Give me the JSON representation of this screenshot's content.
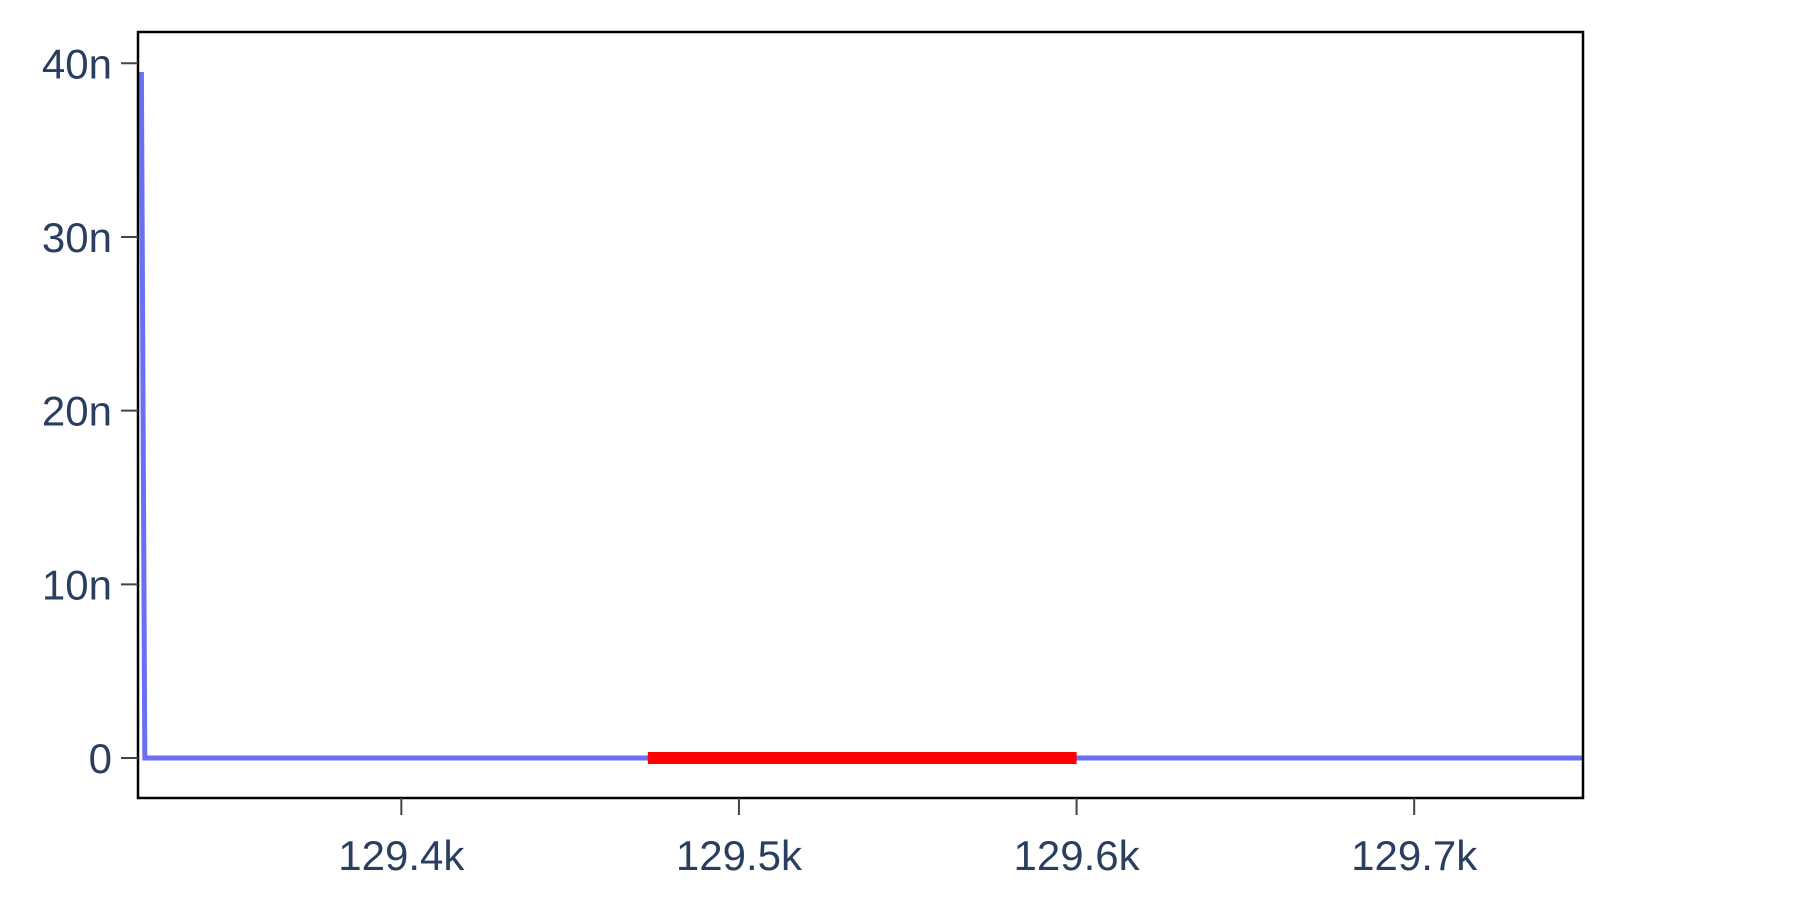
{
  "chart_data": {
    "type": "line",
    "title": "",
    "xlabel": "",
    "ylabel": "",
    "xlim": [
      129322,
      129750
    ],
    "ylim": [
      -2.3,
      41.8
    ],
    "x_ticks": [
      {
        "value": 129400,
        "label": "129.4k"
      },
      {
        "value": 129500,
        "label": "129.5k"
      },
      {
        "value": 129600,
        "label": "129.6k"
      },
      {
        "value": 129700,
        "label": "129.7k"
      }
    ],
    "y_ticks": [
      {
        "value": 0,
        "label": "0"
      },
      {
        "value": 10,
        "label": "10n"
      },
      {
        "value": 20,
        "label": "20n"
      },
      {
        "value": 30,
        "label": "30n"
      },
      {
        "value": 40,
        "label": "40n"
      }
    ],
    "series": [
      {
        "color": "#6b6ff2",
        "x": [
          129323,
          129324,
          129750
        ],
        "y": [
          39.5,
          0,
          0
        ]
      },
      {
        "color": "#ff0000",
        "x": [
          129473,
          129600
        ],
        "y": [
          0,
          0
        ]
      }
    ]
  }
}
